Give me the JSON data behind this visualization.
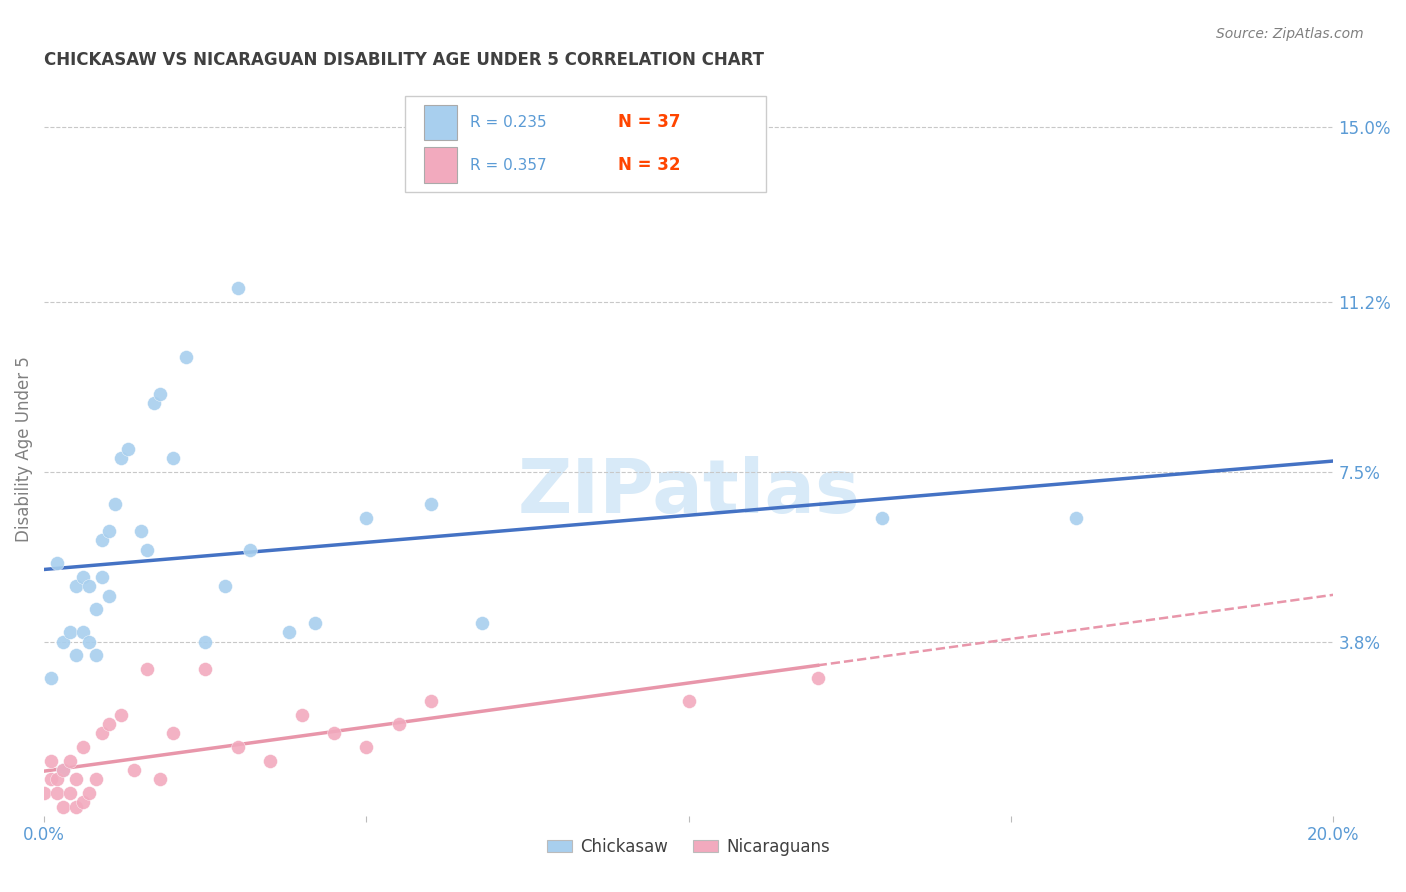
{
  "title": "CHICKASAW VS NICARAGUAN DISABILITY AGE UNDER 5 CORRELATION CHART",
  "source_text": "Source: ZipAtlas.com",
  "ylabel": "Disability Age Under 5",
  "xlim": [
    0.0,
    0.2
  ],
  "ylim": [
    0.0,
    0.16
  ],
  "xticks": [
    0.0,
    0.05,
    0.1,
    0.15,
    0.2
  ],
  "xtick_labels": [
    "0.0%",
    "",
    "",
    "",
    "20.0%"
  ],
  "ytick_labels_right": [
    "3.8%",
    "7.5%",
    "11.2%",
    "15.0%"
  ],
  "ytick_vals_right": [
    0.038,
    0.075,
    0.112,
    0.15
  ],
  "legend_r1": "R = 0.235",
  "legend_n1": "N = 37",
  "legend_r2": "R = 0.357",
  "legend_n2": "N = 32",
  "chickasaw_color": "#A8CFEE",
  "nicaraguan_color": "#F2AABE",
  "trendline_chickasaw_color": "#4472C4",
  "trendline_nicaraguan_color": "#E896AA",
  "background_color": "#FFFFFF",
  "grid_color": "#C8C8C8",
  "axis_label_color": "#5B9BD5",
  "n_label_color": "#FF4500",
  "title_color": "#404040",
  "ylabel_color": "#808080",
  "source_color": "#808080",
  "watermark_color": "#D8EAF8",
  "legend_border_color": "#CCCCCC",
  "chickasaw_x": [
    0.001,
    0.002,
    0.003,
    0.004,
    0.005,
    0.005,
    0.006,
    0.006,
    0.007,
    0.007,
    0.008,
    0.008,
    0.009,
    0.009,
    0.01,
    0.01,
    0.011,
    0.012,
    0.013,
    0.015,
    0.016,
    0.017,
    0.018,
    0.02,
    0.022,
    0.025,
    0.028,
    0.03,
    0.032,
    0.038,
    0.042,
    0.05,
    0.06,
    0.068,
    0.13,
    0.16,
    0.003
  ],
  "chickasaw_y": [
    0.03,
    0.055,
    0.038,
    0.04,
    0.035,
    0.05,
    0.04,
    0.052,
    0.05,
    0.038,
    0.045,
    0.035,
    0.052,
    0.06,
    0.048,
    0.062,
    0.068,
    0.078,
    0.08,
    0.062,
    0.058,
    0.09,
    0.092,
    0.078,
    0.1,
    0.038,
    0.05,
    0.115,
    0.058,
    0.04,
    0.042,
    0.065,
    0.068,
    0.042,
    0.065,
    0.065,
    0.01
  ],
  "nicaraguan_x": [
    0.0,
    0.001,
    0.001,
    0.002,
    0.002,
    0.003,
    0.003,
    0.004,
    0.004,
    0.005,
    0.005,
    0.006,
    0.006,
    0.007,
    0.008,
    0.009,
    0.01,
    0.012,
    0.014,
    0.016,
    0.018,
    0.02,
    0.025,
    0.03,
    0.035,
    0.04,
    0.045,
    0.05,
    0.055,
    0.06,
    0.1,
    0.12
  ],
  "nicaraguan_y": [
    0.005,
    0.008,
    0.012,
    0.005,
    0.008,
    0.002,
    0.01,
    0.005,
    0.012,
    0.002,
    0.008,
    0.003,
    0.015,
    0.005,
    0.008,
    0.018,
    0.02,
    0.022,
    0.01,
    0.032,
    0.008,
    0.018,
    0.032,
    0.015,
    0.012,
    0.022,
    0.018,
    0.015,
    0.02,
    0.025,
    0.025,
    0.03
  ]
}
